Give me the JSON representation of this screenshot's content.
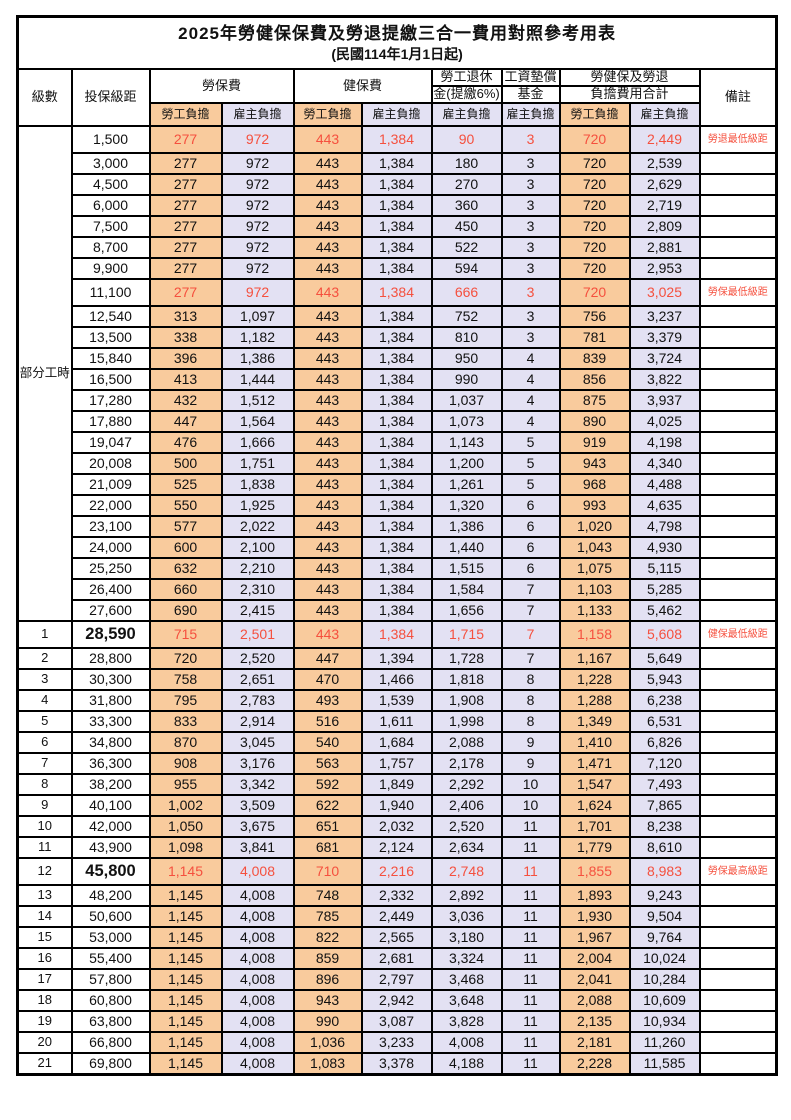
{
  "title": "2025年勞健保保費及勞退提繳三合一費用對照參考用表",
  "subtitle": "(民國114年1月1日起)",
  "colors": {
    "employee_column_bg": "#f9cb9d",
    "employer_column_bg": "#e3e1f3",
    "highlight_text": "#f5503e",
    "border": "#000000"
  },
  "header": {
    "level": "級數",
    "bracket": "投保級距",
    "labor": "勞保費",
    "health": "健保費",
    "pension_line1": "勞工退休",
    "pension_line2": "金(提繳6%)",
    "fund_line1": "工資墊償",
    "fund_line2": "基金",
    "total_line1": "勞健保及勞退",
    "total_line2": "負擔費用合計",
    "remark": "備註",
    "employee": "勞工負擔",
    "employer": "雇主負擔"
  },
  "table": {
    "part_time_label": "部分工時",
    "part_time_rowspan": 23,
    "rows": [
      {
        "level": "",
        "bracket": "1,500",
        "values": [
          "277",
          "972",
          "443",
          "1,384",
          "90",
          "3",
          "720",
          "2,449"
        ],
        "remark": "勞退最低級距",
        "red": true
      },
      {
        "level": "",
        "bracket": "3,000",
        "values": [
          "277",
          "972",
          "443",
          "1,384",
          "180",
          "3",
          "720",
          "2,539"
        ],
        "remark": ""
      },
      {
        "level": "",
        "bracket": "4,500",
        "values": [
          "277",
          "972",
          "443",
          "1,384",
          "270",
          "3",
          "720",
          "2,629"
        ],
        "remark": ""
      },
      {
        "level": "",
        "bracket": "6,000",
        "values": [
          "277",
          "972",
          "443",
          "1,384",
          "360",
          "3",
          "720",
          "2,719"
        ],
        "remark": ""
      },
      {
        "level": "",
        "bracket": "7,500",
        "values": [
          "277",
          "972",
          "443",
          "1,384",
          "450",
          "3",
          "720",
          "2,809"
        ],
        "remark": ""
      },
      {
        "level": "",
        "bracket": "8,700",
        "values": [
          "277",
          "972",
          "443",
          "1,384",
          "522",
          "3",
          "720",
          "2,881"
        ],
        "remark": ""
      },
      {
        "level": "",
        "bracket": "9,900",
        "values": [
          "277",
          "972",
          "443",
          "1,384",
          "594",
          "3",
          "720",
          "2,953"
        ],
        "remark": ""
      },
      {
        "level": "",
        "bracket": "11,100",
        "values": [
          "277",
          "972",
          "443",
          "1,384",
          "666",
          "3",
          "720",
          "3,025"
        ],
        "remark": "勞保最低級距",
        "red": true
      },
      {
        "level": "",
        "bracket": "12,540",
        "values": [
          "313",
          "1,097",
          "443",
          "1,384",
          "752",
          "3",
          "756",
          "3,237"
        ],
        "remark": ""
      },
      {
        "level": "",
        "bracket": "13,500",
        "values": [
          "338",
          "1,182",
          "443",
          "1,384",
          "810",
          "3",
          "781",
          "3,379"
        ],
        "remark": ""
      },
      {
        "level": "",
        "bracket": "15,840",
        "values": [
          "396",
          "1,386",
          "443",
          "1,384",
          "950",
          "4",
          "839",
          "3,724"
        ],
        "remark": ""
      },
      {
        "level": "",
        "bracket": "16,500",
        "values": [
          "413",
          "1,444",
          "443",
          "1,384",
          "990",
          "4",
          "856",
          "3,822"
        ],
        "remark": ""
      },
      {
        "level": "",
        "bracket": "17,280",
        "values": [
          "432",
          "1,512",
          "443",
          "1,384",
          "1,037",
          "4",
          "875",
          "3,937"
        ],
        "remark": ""
      },
      {
        "level": "",
        "bracket": "17,880",
        "values": [
          "447",
          "1,564",
          "443",
          "1,384",
          "1,073",
          "4",
          "890",
          "4,025"
        ],
        "remark": ""
      },
      {
        "level": "",
        "bracket": "19,047",
        "values": [
          "476",
          "1,666",
          "443",
          "1,384",
          "1,143",
          "5",
          "919",
          "4,198"
        ],
        "remark": ""
      },
      {
        "level": "",
        "bracket": "20,008",
        "values": [
          "500",
          "1,751",
          "443",
          "1,384",
          "1,200",
          "5",
          "943",
          "4,340"
        ],
        "remark": ""
      },
      {
        "level": "",
        "bracket": "21,009",
        "values": [
          "525",
          "1,838",
          "443",
          "1,384",
          "1,261",
          "5",
          "968",
          "4,488"
        ],
        "remark": ""
      },
      {
        "level": "",
        "bracket": "22,000",
        "values": [
          "550",
          "1,925",
          "443",
          "1,384",
          "1,320",
          "6",
          "993",
          "4,635"
        ],
        "remark": ""
      },
      {
        "level": "",
        "bracket": "23,100",
        "values": [
          "577",
          "2,022",
          "443",
          "1,384",
          "1,386",
          "6",
          "1,020",
          "4,798"
        ],
        "remark": ""
      },
      {
        "level": "",
        "bracket": "24,000",
        "values": [
          "600",
          "2,100",
          "443",
          "1,384",
          "1,440",
          "6",
          "1,043",
          "4,930"
        ],
        "remark": ""
      },
      {
        "level": "",
        "bracket": "25,250",
        "values": [
          "632",
          "2,210",
          "443",
          "1,384",
          "1,515",
          "6",
          "1,075",
          "5,115"
        ],
        "remark": ""
      },
      {
        "level": "",
        "bracket": "26,400",
        "values": [
          "660",
          "2,310",
          "443",
          "1,384",
          "1,584",
          "7",
          "1,103",
          "5,285"
        ],
        "remark": ""
      },
      {
        "level": "",
        "bracket": "27,600",
        "values": [
          "690",
          "2,415",
          "443",
          "1,384",
          "1,656",
          "7",
          "1,133",
          "5,462"
        ],
        "remark": ""
      },
      {
        "level": "1",
        "bracket": "28,590",
        "values": [
          "715",
          "2,501",
          "443",
          "1,384",
          "1,715",
          "7",
          "1,158",
          "5,608"
        ],
        "remark": "健保最低級距",
        "red": true,
        "bold": true
      },
      {
        "level": "2",
        "bracket": "28,800",
        "values": [
          "720",
          "2,520",
          "447",
          "1,394",
          "1,728",
          "7",
          "1,167",
          "5,649"
        ],
        "remark": ""
      },
      {
        "level": "3",
        "bracket": "30,300",
        "values": [
          "758",
          "2,651",
          "470",
          "1,466",
          "1,818",
          "8",
          "1,228",
          "5,943"
        ],
        "remark": ""
      },
      {
        "level": "4",
        "bracket": "31,800",
        "values": [
          "795",
          "2,783",
          "493",
          "1,539",
          "1,908",
          "8",
          "1,288",
          "6,238"
        ],
        "remark": ""
      },
      {
        "level": "5",
        "bracket": "33,300",
        "values": [
          "833",
          "2,914",
          "516",
          "1,611",
          "1,998",
          "8",
          "1,349",
          "6,531"
        ],
        "remark": ""
      },
      {
        "level": "6",
        "bracket": "34,800",
        "values": [
          "870",
          "3,045",
          "540",
          "1,684",
          "2,088",
          "9",
          "1,410",
          "6,826"
        ],
        "remark": ""
      },
      {
        "level": "7",
        "bracket": "36,300",
        "values": [
          "908",
          "3,176",
          "563",
          "1,757",
          "2,178",
          "9",
          "1,471",
          "7,120"
        ],
        "remark": ""
      },
      {
        "level": "8",
        "bracket": "38,200",
        "values": [
          "955",
          "3,342",
          "592",
          "1,849",
          "2,292",
          "10",
          "1,547",
          "7,493"
        ],
        "remark": ""
      },
      {
        "level": "9",
        "bracket": "40,100",
        "values": [
          "1,002",
          "3,509",
          "622",
          "1,940",
          "2,406",
          "10",
          "1,624",
          "7,865"
        ],
        "remark": ""
      },
      {
        "level": "10",
        "bracket": "42,000",
        "values": [
          "1,050",
          "3,675",
          "651",
          "2,032",
          "2,520",
          "11",
          "1,701",
          "8,238"
        ],
        "remark": ""
      },
      {
        "level": "11",
        "bracket": "43,900",
        "values": [
          "1,098",
          "3,841",
          "681",
          "2,124",
          "2,634",
          "11",
          "1,779",
          "8,610"
        ],
        "remark": ""
      },
      {
        "level": "12",
        "bracket": "45,800",
        "values": [
          "1,145",
          "4,008",
          "710",
          "2,216",
          "2,748",
          "11",
          "1,855",
          "8,983"
        ],
        "remark": "勞保最高級距",
        "red": true,
        "bold": true
      },
      {
        "level": "13",
        "bracket": "48,200",
        "values": [
          "1,145",
          "4,008",
          "748",
          "2,332",
          "2,892",
          "11",
          "1,893",
          "9,243"
        ],
        "remark": ""
      },
      {
        "level": "14",
        "bracket": "50,600",
        "values": [
          "1,145",
          "4,008",
          "785",
          "2,449",
          "3,036",
          "11",
          "1,930",
          "9,504"
        ],
        "remark": ""
      },
      {
        "level": "15",
        "bracket": "53,000",
        "values": [
          "1,145",
          "4,008",
          "822",
          "2,565",
          "3,180",
          "11",
          "1,967",
          "9,764"
        ],
        "remark": ""
      },
      {
        "level": "16",
        "bracket": "55,400",
        "values": [
          "1,145",
          "4,008",
          "859",
          "2,681",
          "3,324",
          "11",
          "2,004",
          "10,024"
        ],
        "remark": ""
      },
      {
        "level": "17",
        "bracket": "57,800",
        "values": [
          "1,145",
          "4,008",
          "896",
          "2,797",
          "3,468",
          "11",
          "2,041",
          "10,284"
        ],
        "remark": ""
      },
      {
        "level": "18",
        "bracket": "60,800",
        "values": [
          "1,145",
          "4,008",
          "943",
          "2,942",
          "3,648",
          "11",
          "2,088",
          "10,609"
        ],
        "remark": ""
      },
      {
        "level": "19",
        "bracket": "63,800",
        "values": [
          "1,145",
          "4,008",
          "990",
          "3,087",
          "3,828",
          "11",
          "2,135",
          "10,934"
        ],
        "remark": ""
      },
      {
        "level": "20",
        "bracket": "66,800",
        "values": [
          "1,145",
          "4,008",
          "1,036",
          "3,233",
          "4,008",
          "11",
          "2,181",
          "11,260"
        ],
        "remark": ""
      },
      {
        "level": "21",
        "bracket": "69,800",
        "values": [
          "1,145",
          "4,008",
          "1,083",
          "3,378",
          "4,188",
          "11",
          "2,228",
          "11,585"
        ],
        "remark": ""
      }
    ]
  }
}
